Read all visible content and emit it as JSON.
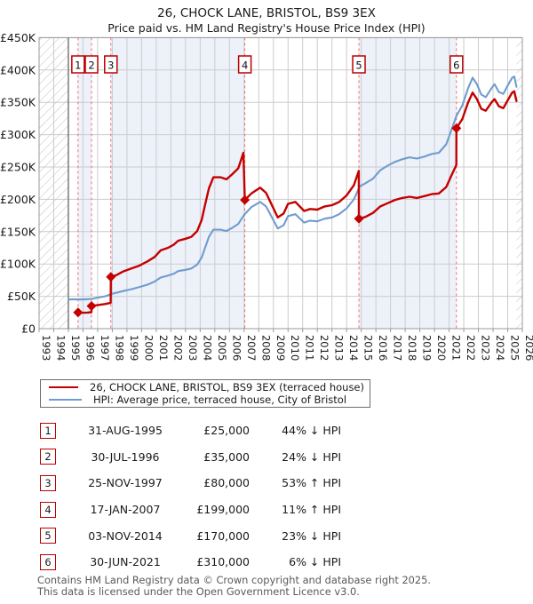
{
  "header": {
    "title": "26, CHOCK LANE, BRISTOL, BS9 3EX",
    "subtitle": "Price paid vs. HM Land Registry's House Price Index (HPI)"
  },
  "legend": {
    "property": "26, CHOCK LANE, BRISTOL, BS9 3EX (terraced house)",
    "hpi": "HPI: Average price, terraced house, City of Bristol"
  },
  "chart_data": {
    "type": "line",
    "title": "26, CHOCK LANE, BRISTOL, BS9 3EX",
    "subtitle": "Price paid vs. HM Land Registry's House Price Index (HPI)",
    "units": "GBP thousands",
    "x_axis": {
      "min": 1993,
      "max": 2026,
      "tick_labels": [
        "1993",
        "1994",
        "1995",
        "1996",
        "1997",
        "1998",
        "1999",
        "2000",
        "2001",
        "2002",
        "2003",
        "2004",
        "2005",
        "2006",
        "2007",
        "2008",
        "2009",
        "2010",
        "2011",
        "2012",
        "2013",
        "2014",
        "2015",
        "2016",
        "2017",
        "2018",
        "2019",
        "2020",
        "2021",
        "2022",
        "2023",
        "2024",
        "2025",
        "2026"
      ]
    },
    "y_axis": {
      "min": 0,
      "max": 450,
      "tick_step": 50,
      "tick_labels": [
        "£0",
        "£50K",
        "£100K",
        "£150K",
        "£200K",
        "£250K",
        "£300K",
        "£350K",
        "£400K",
        "£450K"
      ]
    },
    "hpi_data_range": {
      "start": 1995.0,
      "end": 2025.6
    },
    "series": [
      {
        "name": "26, CHOCK LANE, BRISTOL, BS9 3EX (terraced house)",
        "color": "#c40000",
        "width": 2.4,
        "points": [
          [
            1995.66,
            25
          ],
          [
            1996.0,
            24.6
          ],
          [
            1996.3,
            24.9
          ],
          [
            1996.57,
            25.4
          ],
          [
            1996.58,
            35
          ],
          [
            1997.0,
            36.5
          ],
          [
            1997.5,
            38
          ],
          [
            1997.89,
            40
          ],
          [
            1997.9,
            80
          ],
          [
            1998.3,
            83
          ],
          [
            1998.7,
            88
          ],
          [
            1999.3,
            93
          ],
          [
            1999.8,
            97
          ],
          [
            2000.4,
            104
          ],
          [
            2000.9,
            111
          ],
          [
            2001.3,
            121
          ],
          [
            2001.8,
            125
          ],
          [
            2002.2,
            130
          ],
          [
            2002.5,
            136
          ],
          [
            2003.0,
            139
          ],
          [
            2003.4,
            142
          ],
          [
            2003.8,
            151
          ],
          [
            2004.1,
            168
          ],
          [
            2004.35,
            193
          ],
          [
            2004.6,
            217
          ],
          [
            2004.9,
            234
          ],
          [
            2005.4,
            234
          ],
          [
            2005.8,
            231
          ],
          [
            2006.2,
            239
          ],
          [
            2006.6,
            248
          ],
          [
            2006.95,
            272
          ],
          [
            2007.05,
            199
          ],
          [
            2007.5,
            209
          ],
          [
            2008.1,
            218
          ],
          [
            2008.5,
            210
          ],
          [
            2008.9,
            191
          ],
          [
            2009.3,
            172
          ],
          [
            2009.7,
            178
          ],
          [
            2010.0,
            193
          ],
          [
            2010.5,
            196
          ],
          [
            2011.1,
            182
          ],
          [
            2011.5,
            185
          ],
          [
            2012.0,
            184
          ],
          [
            2012.5,
            189
          ],
          [
            2013.0,
            191
          ],
          [
            2013.5,
            196
          ],
          [
            2014.0,
            206
          ],
          [
            2014.5,
            222
          ],
          [
            2014.83,
            244
          ],
          [
            2014.84,
            170
          ],
          [
            2015.3,
            173
          ],
          [
            2015.8,
            179
          ],
          [
            2016.3,
            189
          ],
          [
            2016.8,
            194
          ],
          [
            2017.3,
            199
          ],
          [
            2017.8,
            202
          ],
          [
            2018.3,
            204
          ],
          [
            2018.8,
            202
          ],
          [
            2019.3,
            205
          ],
          [
            2019.8,
            208
          ],
          [
            2020.3,
            209
          ],
          [
            2020.8,
            219
          ],
          [
            2021.2,
            239
          ],
          [
            2021.49,
            253
          ],
          [
            2021.5,
            310
          ],
          [
            2021.9,
            324
          ],
          [
            2022.3,
            350
          ],
          [
            2022.6,
            365
          ],
          [
            2022.9,
            355
          ],
          [
            2023.2,
            340
          ],
          [
            2023.5,
            337
          ],
          [
            2023.9,
            350
          ],
          [
            2024.1,
            355
          ],
          [
            2024.4,
            344
          ],
          [
            2024.7,
            341
          ],
          [
            2025.0,
            353
          ],
          [
            2025.3,
            365
          ],
          [
            2025.45,
            367
          ],
          [
            2025.6,
            352
          ]
        ]
      },
      {
        "name": "HPI: Average price, terraced house, City of Bristol",
        "color": "#6f9cce",
        "width": 2.1,
        "points": [
          [
            1995.0,
            45
          ],
          [
            1995.4,
            45.5
          ],
          [
            1995.8,
            45
          ],
          [
            1996.2,
            45.5
          ],
          [
            1996.6,
            46
          ],
          [
            1997.0,
            48
          ],
          [
            1997.5,
            50
          ],
          [
            1998.0,
            54
          ],
          [
            1998.7,
            58
          ],
          [
            1999.3,
            61
          ],
          [
            1999.8,
            64
          ],
          [
            2000.4,
            68
          ],
          [
            2000.9,
            73
          ],
          [
            2001.3,
            79
          ],
          [
            2001.8,
            82
          ],
          [
            2002.2,
            85
          ],
          [
            2002.5,
            89
          ],
          [
            2003.0,
            91
          ],
          [
            2003.4,
            93
          ],
          [
            2003.8,
            99
          ],
          [
            2004.1,
            110
          ],
          [
            2004.35,
            126
          ],
          [
            2004.6,
            142
          ],
          [
            2004.9,
            153
          ],
          [
            2005.4,
            153
          ],
          [
            2005.8,
            151
          ],
          [
            2006.2,
            156
          ],
          [
            2006.6,
            162
          ],
          [
            2007.0,
            176
          ],
          [
            2007.5,
            188
          ],
          [
            2008.1,
            196
          ],
          [
            2008.5,
            189
          ],
          [
            2008.9,
            172
          ],
          [
            2009.3,
            155
          ],
          [
            2009.7,
            160
          ],
          [
            2010.0,
            174
          ],
          [
            2010.5,
            177
          ],
          [
            2011.1,
            164
          ],
          [
            2011.5,
            167
          ],
          [
            2012.0,
            166
          ],
          [
            2012.5,
            170
          ],
          [
            2013.0,
            172
          ],
          [
            2013.5,
            177
          ],
          [
            2014.0,
            186
          ],
          [
            2014.5,
            200
          ],
          [
            2014.9,
            220
          ],
          [
            2015.3,
            225
          ],
          [
            2015.8,
            232
          ],
          [
            2016.3,
            245
          ],
          [
            2016.8,
            252
          ],
          [
            2017.3,
            258
          ],
          [
            2017.8,
            262
          ],
          [
            2018.3,
            265
          ],
          [
            2018.8,
            263
          ],
          [
            2019.3,
            266
          ],
          [
            2019.8,
            270
          ],
          [
            2020.3,
            272
          ],
          [
            2020.8,
            285
          ],
          [
            2021.2,
            310
          ],
          [
            2021.5,
            329
          ],
          [
            2021.9,
            345
          ],
          [
            2022.3,
            372
          ],
          [
            2022.6,
            388
          ],
          [
            2022.9,
            378
          ],
          [
            2023.2,
            362
          ],
          [
            2023.5,
            358
          ],
          [
            2023.9,
            372
          ],
          [
            2024.1,
            378
          ],
          [
            2024.4,
            366
          ],
          [
            2024.7,
            363
          ],
          [
            2025.0,
            376
          ],
          [
            2025.3,
            388
          ],
          [
            2025.45,
            390
          ],
          [
            2025.6,
            374
          ]
        ]
      }
    ],
    "sales_markers": [
      {
        "n": "1",
        "t": 1995.66,
        "value": 25
      },
      {
        "n": "2",
        "t": 1996.58,
        "value": 35
      },
      {
        "n": "3",
        "t": 1997.9,
        "value": 80
      },
      {
        "n": "4",
        "t": 2007.05,
        "value": 199
      },
      {
        "n": "5",
        "t": 2014.84,
        "value": 170
      },
      {
        "n": "6",
        "t": 2021.5,
        "value": 310
      }
    ],
    "ownership_bands": [
      [
        1995.66,
        1996.58
      ],
      [
        1997.9,
        2007.05
      ],
      [
        2014.84,
        2021.5
      ]
    ],
    "colors": {
      "band": "#edf1fa",
      "grid": "#cccccc",
      "dashed": "#f36c6c",
      "hatch": "#c4c4c4",
      "frame": "#9a9a9a",
      "data_start_line": "#666666",
      "marker_box_border": "#bb0000",
      "axis_text": "#1a1a1a"
    }
  },
  "table": {
    "rows": [
      {
        "n": "1",
        "date": "31-AUG-1995",
        "price": "£25,000",
        "vs_hpi": "44% ↓ HPI"
      },
      {
        "n": "2",
        "date": "30-JUL-1996",
        "price": "£35,000",
        "vs_hpi": "24% ↓ HPI"
      },
      {
        "n": "3",
        "date": "25-NOV-1997",
        "price": "£80,000",
        "vs_hpi": "53% ↑ HPI"
      },
      {
        "n": "4",
        "date": "17-JAN-2007",
        "price": "£199,000",
        "vs_hpi": "11% ↑ HPI"
      },
      {
        "n": "5",
        "date": "03-NOV-2014",
        "price": "£170,000",
        "vs_hpi": "23% ↓ HPI"
      },
      {
        "n": "6",
        "date": "30-JUN-2021",
        "price": "£310,000",
        "vs_hpi": "6% ↓ HPI"
      }
    ]
  },
  "footer": {
    "line1": "Contains HM Land Registry data © Crown copyright and database right 2025.",
    "line2": "This data is licensed under the Open Government Licence v3.0."
  }
}
